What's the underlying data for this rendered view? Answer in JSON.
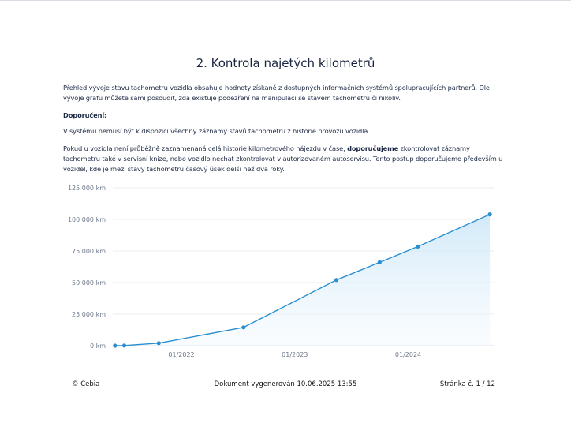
{
  "heading": "2. Kontrola najetých kilometrů",
  "intro": "Přehled vývoje stavu tachometru vozidla obsahuje hodnoty získané z dostupných informačních systémů spolupracujících partnerů. Dle vývoje grafu můžete sami posoudit, zda existuje podezření na manipulaci se stavem tachometru či nikoliv.",
  "recommendation_label": "Doporučení:",
  "note": "V systému nemusí být k dispozici všechny záznamy stavů tachometru z historie provozu vozidla.",
  "advice": {
    "part1": "Pokud u vozidla není průběžně zaznamenaná celá historie kilometrového nájezdu v čase, ",
    "bold": "doporučujeme",
    "part2": " zkontrolovat záznamy tachometru také v servisní knize, nebo vozidlo nechat zkontrolovat v autorizovaném autoservisu. Tento postup doporučujeme především u vozidel, kde je mezi stavy tachometru časový úsek delší než dva roky."
  },
  "chart_data": {
    "type": "area",
    "title": "",
    "xlabel": "",
    "ylabel": "",
    "x_ticks": [
      "01/2022",
      "01/2023",
      "01/2024"
    ],
    "y_ticks": [
      "0 km",
      "25 000 km",
      "50 000 km",
      "75 000 km",
      "100 000 km",
      "125 000 km"
    ],
    "ylim": [
      0,
      125000
    ],
    "xlim": [
      "2021-05-25",
      "2024-10-05"
    ],
    "grid": true,
    "line_color": "#2a8fd0",
    "fill_color": "#dbeefa",
    "x": [
      "2021-06-01",
      "2021-07-01",
      "2021-10-20",
      "2022-07-20",
      "2023-05-15",
      "2023-10-01",
      "2024-02-01",
      "2024-09-20"
    ],
    "values": [
      0,
      100,
      2000,
      14500,
      52000,
      66000,
      78500,
      104000
    ]
  },
  "footer": {
    "left": "© Cebia",
    "center": "Dokument vygenerován 10.06.2025 13:55",
    "right": "Stránka č. 1 / 12"
  }
}
